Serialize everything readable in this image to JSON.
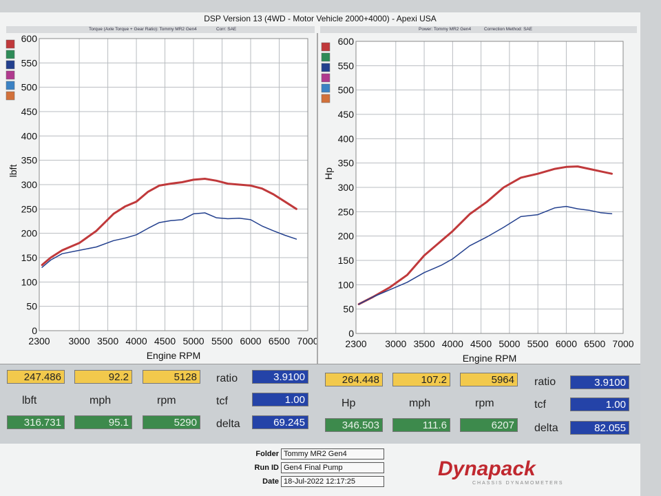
{
  "header": {
    "title": "DSP Version 13 (4WD - Motor Vehicle 2000+4000) - Apexi USA",
    "left_strip_title": "Torque (Axle Torque + Gear Ratio): Tommy MR2 Gen4",
    "left_strip_corr": "Corr: SAE",
    "right_strip_title": "Power: Tommy MR2 Gen4",
    "right_strip_corr": "Correction Method: SAE"
  },
  "legend_colors": [
    "#c0393b",
    "#2e8b57",
    "#23408e",
    "#b03a8e",
    "#3b82c4",
    "#d2713a"
  ],
  "chart_data": [
    {
      "type": "line",
      "xlabel": "Engine RPM",
      "ylabel": "lbft",
      "xlim": [
        2300,
        7000
      ],
      "ylim": [
        0,
        600
      ],
      "x_ticks": [
        2300,
        3000,
        3500,
        4000,
        4500,
        5000,
        5500,
        6000,
        6500,
        7000
      ],
      "y_ticks": [
        0,
        50,
        100,
        150,
        200,
        250,
        300,
        350,
        400,
        450,
        500,
        550,
        600
      ],
      "grid": true,
      "series": [
        {
          "color": "#c0393b",
          "width": 3,
          "x": [
            2350,
            2500,
            2700,
            3000,
            3300,
            3600,
            3800,
            4000,
            4200,
            4400,
            4600,
            4800,
            5000,
            5200,
            5400,
            5600,
            5800,
            6000,
            6200,
            6400,
            6600,
            6800
          ],
          "y": [
            135,
            150,
            165,
            180,
            205,
            240,
            255,
            265,
            285,
            298,
            302,
            305,
            310,
            312,
            308,
            302,
            300,
            298,
            292,
            280,
            265,
            250
          ]
        },
        {
          "color": "#23408e",
          "width": 1.5,
          "x": [
            2350,
            2500,
            2700,
            3000,
            3300,
            3600,
            3800,
            4000,
            4200,
            4400,
            4600,
            4800,
            5000,
            5200,
            5400,
            5600,
            5800,
            6000,
            6200,
            6400,
            6600,
            6800
          ],
          "y": [
            130,
            145,
            158,
            165,
            172,
            185,
            190,
            197,
            210,
            222,
            226,
            228,
            240,
            242,
            232,
            230,
            231,
            228,
            215,
            205,
            196,
            188
          ]
        }
      ]
    },
    {
      "type": "line",
      "xlabel": "Engine RPM",
      "ylabel": "Hp",
      "xlim": [
        2300,
        7000
      ],
      "ylim": [
        0,
        600
      ],
      "x_ticks": [
        2300,
        3000,
        3500,
        4000,
        4500,
        5000,
        5500,
        6000,
        6500,
        7000
      ],
      "y_ticks": [
        0,
        50,
        100,
        150,
        200,
        250,
        300,
        350,
        400,
        450,
        500,
        550,
        600
      ],
      "grid": true,
      "series": [
        {
          "color": "#c0393b",
          "width": 3,
          "x": [
            2350,
            2600,
            2900,
            3200,
            3500,
            3800,
            4000,
            4300,
            4600,
            4900,
            5200,
            5500,
            5800,
            6000,
            6200,
            6400,
            6600,
            6800
          ],
          "y": [
            60,
            75,
            95,
            120,
            160,
            190,
            210,
            245,
            270,
            300,
            320,
            328,
            338,
            342,
            343,
            338,
            333,
            328
          ]
        },
        {
          "color": "#23408e",
          "width": 1.5,
          "x": [
            2350,
            2600,
            2900,
            3200,
            3500,
            3800,
            4000,
            4300,
            4600,
            4900,
            5200,
            5500,
            5800,
            6000,
            6200,
            6400,
            6600,
            6800
          ],
          "y": [
            60,
            75,
            90,
            105,
            125,
            140,
            153,
            180,
            198,
            218,
            240,
            244,
            258,
            261,
            256,
            253,
            248,
            246
          ]
        }
      ]
    }
  ],
  "readouts": {
    "left": {
      "yellow": [
        "247.486",
        "92.2",
        "5128"
      ],
      "labels": [
        "lbft",
        "mph",
        "rpm"
      ],
      "green": [
        "316.731",
        "95.1",
        "5290"
      ],
      "ratio_label": "ratio",
      "ratio": "3.9100",
      "tcf_label": "tcf",
      "tcf": "1.00",
      "delta_label": "delta",
      "delta": "69.245"
    },
    "right": {
      "yellow": [
        "264.448",
        "107.2",
        "5964"
      ],
      "labels": [
        "Hp",
        "mph",
        "rpm"
      ],
      "green": [
        "346.503",
        "111.6",
        "6207"
      ],
      "ratio_label": "ratio",
      "ratio": "3.9100",
      "tcf_label": "tcf",
      "tcf": "1.00",
      "delta_label": "delta",
      "delta": "82.055"
    }
  },
  "footer": {
    "folder_label": "Folder",
    "folder": "Tommy MR2 Gen4",
    "runid_label": "Run ID",
    "runid": "Gen4 Final Pump",
    "date_label": "Date",
    "date": "18-Jul-2022 12:17:25"
  },
  "logo": {
    "word": "Dynapack",
    "sub": "CHASSIS DYNAMOMETERS"
  }
}
